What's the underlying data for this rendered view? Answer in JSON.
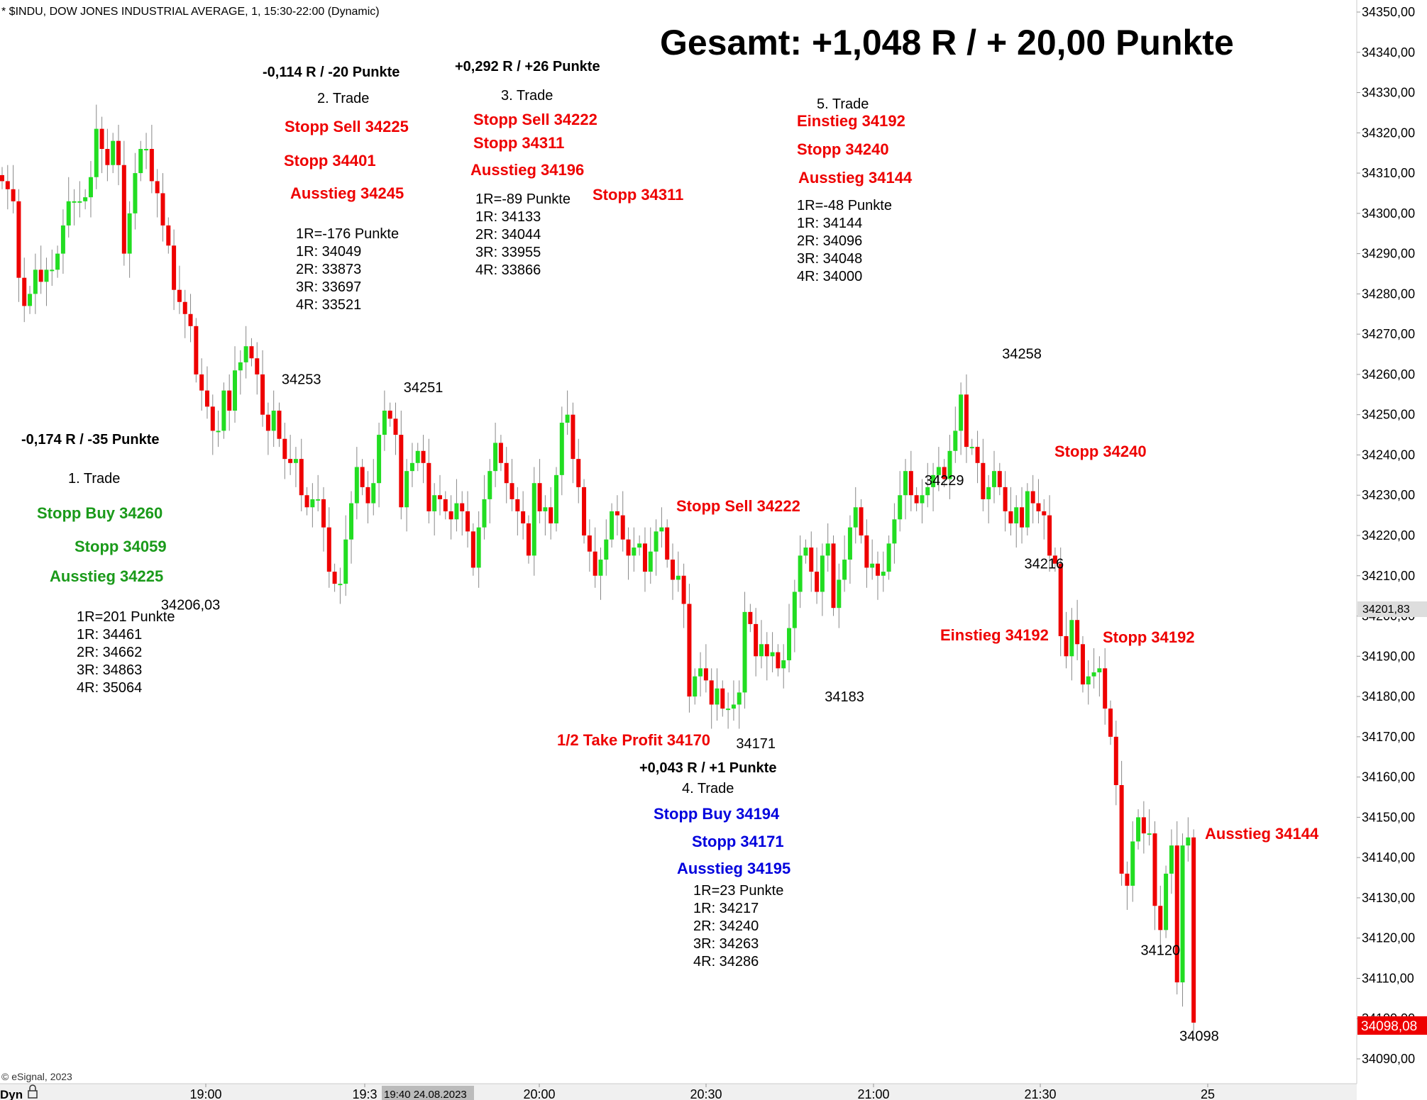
{
  "header": {
    "title": "* $INDU, DOW JONES INDUSTRIAL AVERAGE, 1, 15:30-22:00 (Dynamic)",
    "summary": "Gesamt: +1,048 R / + 20,00 Punkte",
    "copyright": "© eSignal, 2023",
    "dyn_label": "Dyn",
    "cursor_date": "19:40 24.08.2023"
  },
  "colors": {
    "up": "#22dd22",
    "down": "#ee0000",
    "red_text": "#ee0000",
    "green_text": "#1a9a1a",
    "blue_text": "#0000dd",
    "price_badge": "#ee0000",
    "cursor_badge": "#bbbbbb"
  },
  "chart_data": {
    "type": "candlestick",
    "title": "* $INDU, DOW JONES INDUSTRIAL AVERAGE, 1, 15:30-22:00 (Dynamic)",
    "interval": "1 min",
    "ylim": [
      34085,
      34352
    ],
    "y_ticks": [
      "34350,00",
      "34340,00",
      "34330,00",
      "34320,00",
      "34310,00",
      "34300,00",
      "34290,00",
      "34280,00",
      "34270,00",
      "34260,00",
      "34250,00",
      "34240,00",
      "34230,00",
      "34220,00",
      "34210,00",
      "34200,00",
      "34190,00",
      "34180,00",
      "34170,00",
      "34160,00",
      "34150,00",
      "34140,00",
      "34130,00",
      "34120,00",
      "34110,00",
      "34100,00",
      "34090,00"
    ],
    "x_ticks": [
      "19:00",
      "19:3",
      "20:00",
      "20:30",
      "21:00",
      "21:30",
      "25"
    ],
    "grid": false,
    "last_price": "34098,08",
    "ref_price": "34201,83",
    "closes": [
      34308,
      34306,
      34303,
      34284,
      34277,
      34280,
      34286,
      34283,
      34286,
      34286,
      34290,
      34297,
      34303,
      34303,
      34303,
      34304,
      34309,
      34321,
      34316,
      34312,
      34318,
      34312,
      34290,
      34300,
      34310,
      34316,
      34316,
      34308,
      34305,
      34297,
      34292,
      34281,
      34278,
      34275,
      34272,
      34260,
      34256,
      34252,
      34246,
      34246,
      34256,
      34251,
      34261,
      34263,
      34267,
      34264,
      34260,
      34250,
      34246,
      34251,
      34244,
      34239,
      34238,
      34239,
      34230,
      34227,
      34229,
      34229,
      34222,
      34211,
      34208,
      34208,
      34219,
      34228,
      34237,
      34232,
      34228,
      34233,
      34245,
      34251,
      34249,
      34245,
      34227,
      34236,
      34238,
      34241,
      34238,
      34226,
      34230,
      34229,
      34226,
      34224,
      34228,
      34226,
      34221,
      34212,
      34222,
      34229,
      34236,
      34243,
      34238,
      34233,
      34229,
      34226,
      34223,
      34215,
      34233,
      34226,
      34227,
      34223,
      34235,
      34248,
      34250,
      34239,
      34232,
      34220,
      34216,
      34210,
      34214,
      34219,
      34226,
      34225,
      34219,
      34215,
      34217,
      34218,
      34211,
      34216,
      34221,
      34222,
      34214,
      34209,
      34210,
      34203,
      34180,
      34185,
      34187,
      34184,
      34178,
      34182,
      34177,
      34177,
      34178,
      34181,
      34201,
      34198,
      34190,
      34193,
      34190,
      34191,
      34187,
      34189,
      34197,
      34206,
      34215,
      34217,
      34211,
      34206,
      34215,
      34218,
      34202,
      34209,
      34214,
      34222,
      34227,
      34220,
      34212,
      34213,
      34210,
      34211,
      34218,
      34224,
      34230,
      34236,
      34230,
      34228,
      34230,
      34232,
      34235,
      34237,
      34234,
      34241,
      34246,
      34255,
      34242,
      34242,
      34238,
      34229,
      34232,
      34236,
      34232,
      34226,
      34223,
      34227,
      34222,
      34231,
      34228,
      34226,
      34225,
      34215,
      34213,
      34195,
      34190,
      34199,
      34193,
      34183,
      34185,
      34186,
      34187,
      34177,
      34170,
      34158,
      34136,
      34133,
      34144,
      34150,
      34146,
      34146,
      34128,
      34122,
      34136,
      34143,
      34109,
      34143,
      34145,
      34099
    ],
    "annotations": [
      {
        "x": 34,
        "y": 34206.03,
        "text": "34206,03"
      },
      {
        "x": 54,
        "y": 34253,
        "text": "34253"
      },
      {
        "x": 76,
        "y": 34251,
        "text": "34251"
      },
      {
        "x": 136,
        "y": 34171,
        "text": "34171"
      },
      {
        "x": 152,
        "y": 34183,
        "text": "34183"
      },
      {
        "x": 170,
        "y": 34229,
        "text": "34229"
      },
      {
        "x": 184,
        "y": 34258,
        "text": "34258"
      },
      {
        "x": 188,
        "y": 34216,
        "text": "34216"
      },
      {
        "x": 209,
        "y": 34120,
        "text": "34120"
      },
      {
        "x": 216,
        "y": 34098,
        "text": "34098"
      }
    ]
  },
  "trades": [
    {
      "result": "-0,174 R / -35 Punkte",
      "name": "1. Trade",
      "entry": "Stopp Buy 34260",
      "stop": "Stopp 34059",
      "exit": "Ausstieg 34225",
      "levels": [
        "1R=201 Punkte",
        "1R: 34461",
        "2R: 34662",
        "3R: 34863",
        "4R: 35064"
      ]
    },
    {
      "result": "-0,114 R / -20 Punkte",
      "name": "2. Trade",
      "entry": "Stopp Sell 34225",
      "stop": "Stopp 34401",
      "exit": "Ausstieg 34245",
      "levels": [
        "1R=-176 Punkte",
        "1R: 34049",
        "2R: 33873",
        "3R: 33697",
        "4R: 33521"
      ]
    },
    {
      "result": "+0,292 R / +26 Punkte",
      "name": "3. Trade",
      "entry": "Stopp Sell 34222",
      "stop": "Stopp 34311",
      "exit": "Ausstieg 34196",
      "extra_stop": "Stopp 34311",
      "levels": [
        "1R=-89 Punkte",
        "1R: 34133",
        "2R: 34044",
        "3R: 33955",
        "4R: 33866"
      ]
    },
    {
      "result": "+0,043 R / +1 Punkte",
      "name": "4. Trade",
      "entry": "Stopp Buy 34194",
      "stop": "Stopp 34171",
      "exit": "Ausstieg 34195",
      "levels": [
        "1R=23 Punkte",
        "1R: 34217",
        "2R: 34240",
        "3R: 34263",
        "4R: 34286"
      ]
    },
    {
      "name": "5. Trade",
      "entry": "Einstieg 34192",
      "stop": "Stopp 34240",
      "exit": "Ausstieg 34144",
      "levels": [
        "1R=-48 Punkte",
        "1R: 34144",
        "2R: 34096",
        "3R: 34048",
        "4R: 34000"
      ]
    }
  ],
  "chart_labels": {
    "stopp_sell": "Stopp Sell 34222",
    "take_profit": "1/2 Take Profit 34170",
    "stopp_34240": "Stopp 34240",
    "einstieg": "Einstieg 34192",
    "stopp_34192": "Stopp 34192",
    "ausstieg": "Ausstieg 34144"
  }
}
